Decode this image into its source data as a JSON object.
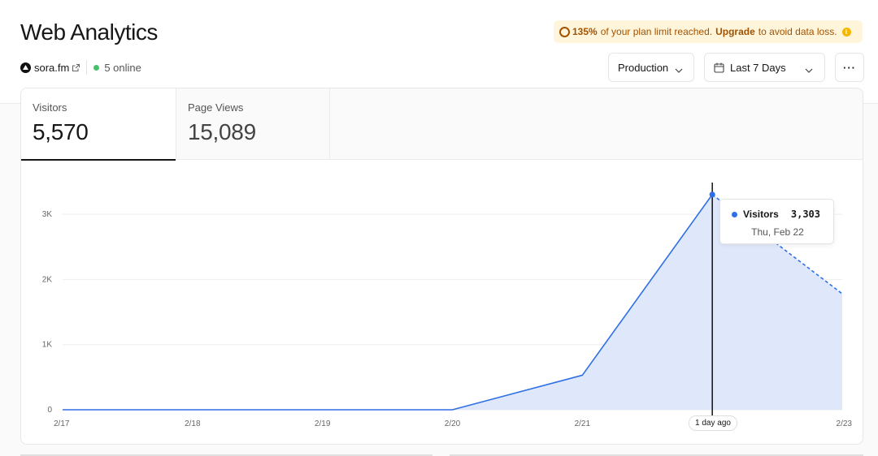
{
  "header": {
    "title": "Web Analytics",
    "project": "sora.fm",
    "online": "5 online"
  },
  "banner": {
    "percent": "135%",
    "text1": "of your plan limit reached.",
    "link": "Upgrade",
    "text2": "to avoid data loss.",
    "info_glyph": "i"
  },
  "controls": {
    "environment": "Production",
    "range": "Last 7 Days",
    "more": "···"
  },
  "tabs": [
    {
      "label": "Visitors",
      "value": "5,570"
    },
    {
      "label": "Page Views",
      "value": "15,089"
    }
  ],
  "tooltip": {
    "series": "Visitors",
    "value": "3,303",
    "date": "Thu, Feb 22"
  },
  "hover_label": "1 day ago",
  "colors": {
    "line": "#2f6fe4",
    "area": "#dfe8fa",
    "online": "#45c26b",
    "banner_bg": "#fff5db",
    "banner_text": "#a35200"
  },
  "chart_data": {
    "type": "area",
    "x": [
      "2/17",
      "2/18",
      "2/19",
      "2/20",
      "2/21",
      "2/22",
      "2/23"
    ],
    "series": [
      {
        "name": "Visitors",
        "values": [
          0,
          0,
          0,
          0,
          530,
          3303,
          1780
        ]
      }
    ],
    "yticks": [
      0,
      1000,
      2000,
      3000
    ],
    "ytick_labels": [
      "0",
      "1K",
      "2K",
      "3K"
    ],
    "ylim": [
      0,
      3500
    ],
    "hover_index": 5,
    "partial_last_segment": true,
    "grid": true
  }
}
